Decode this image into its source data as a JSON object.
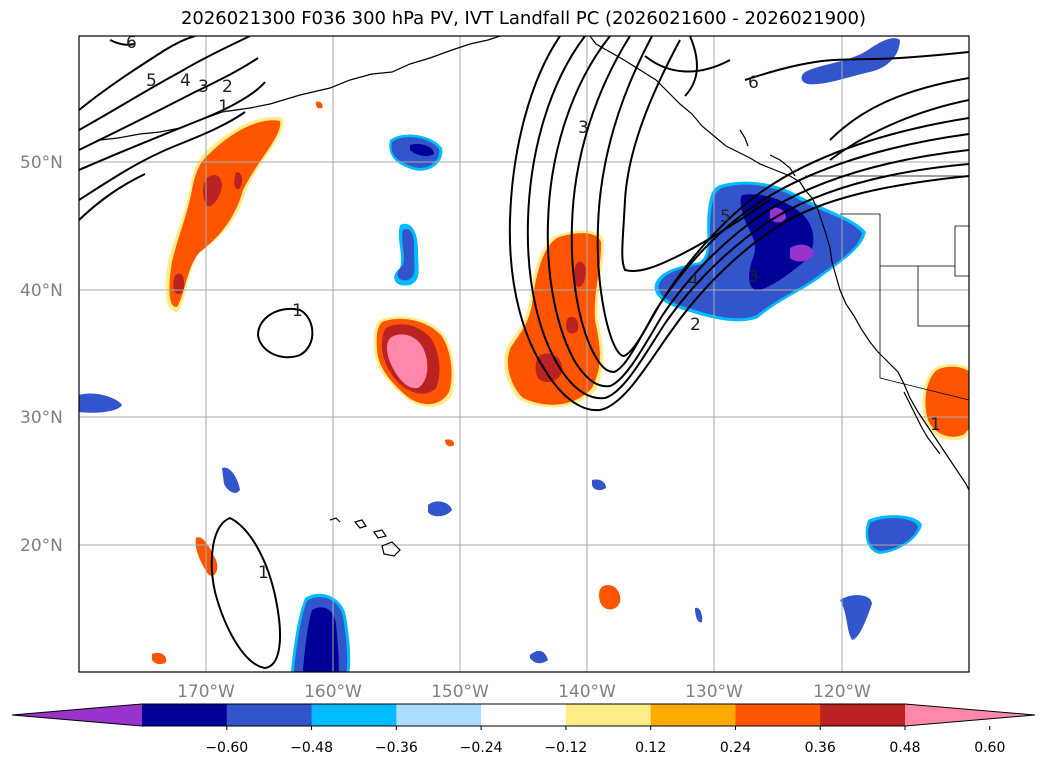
{
  "title": "2026021300 F036 300 hPa PV, IVT Landfall PC (2026021600 - 2026021900)",
  "map": {
    "lon_range": [
      -180,
      -110
    ],
    "lat_range": [
      10,
      60
    ],
    "lat_labels": [
      "50°N",
      "40°N",
      "30°N",
      "20°N"
    ],
    "lon_labels": [
      "170°W",
      "160°W",
      "150°W",
      "140°W",
      "130°W",
      "120°W"
    ]
  },
  "contour_labels": [
    "6",
    "5",
    "4",
    "3",
    "2",
    "1",
    "3",
    "1",
    "6",
    "5",
    "4",
    "3",
    "2",
    "1",
    "1"
  ],
  "colorbar": {
    "colors": [
      "#9933cc",
      "#000099",
      "#3355cc",
      "#00bbff",
      "#aaddff",
      "#ffffff",
      "#ffee88",
      "#ffaa00",
      "#ff5500",
      "#bb2222",
      "#ff88aa"
    ],
    "tick_labels": [
      "−0.60",
      "−0.48",
      "−0.36",
      "−0.24",
      "−0.12",
      "0.12",
      "0.24",
      "0.36",
      "0.48",
      "0.60"
    ]
  }
}
